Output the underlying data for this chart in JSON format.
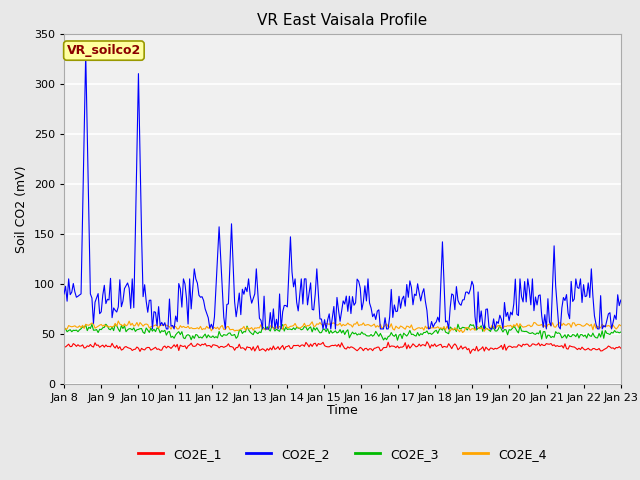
{
  "title": "VR East Vaisala Profile",
  "ylabel": "Soil CO2 (mV)",
  "xlabel": "Time",
  "xlim_days": [
    8,
    23
  ],
  "ylim": [
    0,
    350
  ],
  "yticks": [
    0,
    50,
    100,
    150,
    200,
    250,
    300,
    350
  ],
  "xtick_labels": [
    "Jan 8",
    "Jan 9",
    "Jan 10",
    "Jan 11",
    "Jan 12",
    "Jan 13",
    "Jan 14",
    "Jan 15",
    "Jan 16",
    "Jan 17",
    "Jan 18",
    "Jan 19",
    "Jan 20",
    "Jan 21",
    "Jan 22",
    "Jan 23"
  ],
  "xtick_positions": [
    8,
    9,
    10,
    11,
    12,
    13,
    14,
    15,
    16,
    17,
    18,
    19,
    20,
    21,
    22,
    23
  ],
  "annotation_text": "VR_soilco2",
  "annotation_text_color": "#8B0000",
  "annotation_box_color": "#FFFFA0",
  "background_color": "#E8E8E8",
  "axes_bg_color": "#F0F0F0",
  "grid_color": "white",
  "colors": {
    "CO2E_1": "#FF0000",
    "CO2E_2": "#0000FF",
    "CO2E_3": "#00BB00",
    "CO2E_4": "#FFA500"
  },
  "legend_labels": [
    "CO2E_1",
    "CO2E_2",
    "CO2E_3",
    "CO2E_4"
  ]
}
